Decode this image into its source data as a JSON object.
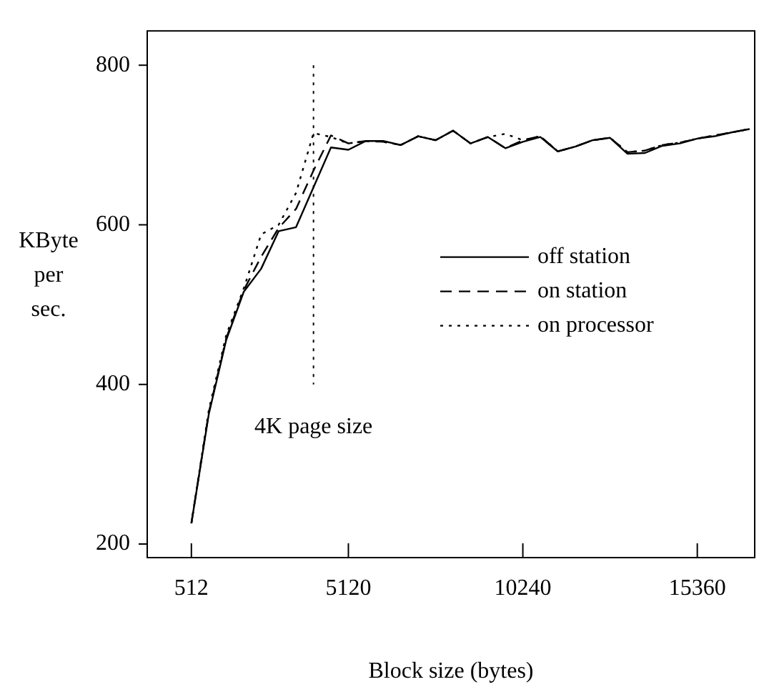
{
  "chart_data": {
    "type": "line",
    "xlabel": "Block size (bytes)",
    "ylabel": "KByte per sec.",
    "x": [
      512,
      1024,
      1536,
      2048,
      2560,
      3072,
      3584,
      4096,
      4608,
      5120,
      5632,
      6144,
      6656,
      7168,
      7680,
      8192,
      8704,
      9216,
      9728,
      10240,
      10752,
      11264,
      11776,
      12288,
      12800,
      13312,
      13824,
      14336,
      14848,
      15360,
      15872,
      16384,
      16896
    ],
    "series": [
      {
        "name": "off station",
        "color": "#000000",
        "line_style": "solid",
        "values": [
          226,
          363,
          456,
          516,
          545,
          592,
          597,
          647,
          697,
          694,
          705,
          705,
          700,
          711,
          706,
          718,
          702,
          710,
          696,
          704,
          710,
          692,
          698,
          706,
          709,
          689,
          690,
          699,
          702,
          708,
          711,
          716,
          720
        ]
      },
      {
        "name": "on station",
        "color": "#000000",
        "line_style": "dashed",
        "values": [
          226,
          365,
          458,
          518,
          560,
          596,
          620,
          668,
          712,
          702,
          705,
          704,
          700,
          711,
          706,
          718,
          702,
          710,
          696,
          706,
          711,
          692,
          698,
          706,
          709,
          691,
          693,
          700,
          703,
          708,
          712,
          716,
          720
        ]
      },
      {
        "name": "on processor",
        "color": "#000000",
        "line_style": "dotted",
        "values": [
          226,
          368,
          462,
          520,
          588,
          600,
          640,
          715,
          710,
          702,
          705,
          704,
          700,
          711,
          706,
          718,
          702,
          710,
          714,
          706,
          711,
          692,
          698,
          706,
          709,
          691,
          693,
          700,
          703,
          708,
          712,
          716,
          720
        ]
      }
    ],
    "xlim": [
      -784,
      17045
    ],
    "xticks": [
      512,
      5120,
      10240,
      15360
    ],
    "ylim": [
      183,
      843
    ],
    "yticks": [
      200,
      400,
      600,
      800
    ],
    "ref_lines": [
      {
        "axis": "x",
        "value": 4096,
        "label": "4K page size",
        "line_style": "dotted"
      }
    ],
    "legend": "right",
    "grid": false,
    "marker": "none"
  }
}
